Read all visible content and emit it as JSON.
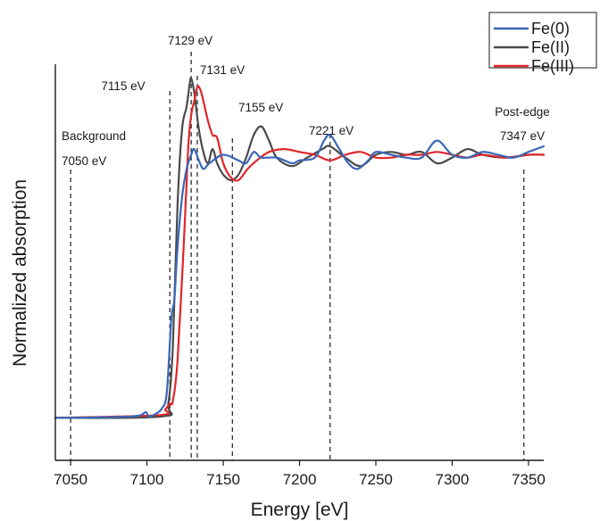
{
  "chart_data": {
    "type": "line",
    "xlabel": "Energy [eV]",
    "ylabel": "Normalized absorption",
    "xlim": [
      7040,
      7360
    ],
    "ylim": [
      -0.15,
      1.25
    ],
    "x_ticks": [
      7050,
      7100,
      7150,
      7200,
      7250,
      7300,
      7350
    ],
    "y_ticks_shown": false,
    "legend": {
      "position": "top-right",
      "entries": [
        "Fe(0)",
        "Fe(II)",
        "Fe(III)"
      ]
    },
    "annotations": [
      {
        "x": 7050,
        "lines": [
          "Background",
          "7050 eV"
        ]
      },
      {
        "x": 7115,
        "lines": [
          "7115 eV"
        ]
      },
      {
        "x": 7129,
        "lines": [
          "7129 eV"
        ]
      },
      {
        "x": 7133,
        "lines": [
          "7131 eV"
        ]
      },
      {
        "x": 7156,
        "lines": [
          "7155 eV"
        ]
      },
      {
        "x": 7220,
        "lines": [
          "7221 eV"
        ]
      },
      {
        "x": 7347,
        "lines": [
          "Post-edge",
          "7347 eV"
        ]
      }
    ],
    "series": [
      {
        "name": "Fe(0)",
        "color": "#3a67b8",
        "x": [
          7040,
          7090,
          7099,
          7101,
          7106,
          7110,
          7113,
          7116,
          7118,
          7120,
          7123,
          7126,
          7129,
          7131,
          7134,
          7137,
          7141,
          7150,
          7160,
          7165,
          7170,
          7175,
          7185,
          7195,
          7200,
          7210,
          7216,
          7220,
          7225,
          7232,
          7238,
          7245,
          7250,
          7260,
          7270,
          7280,
          7290,
          7300,
          7310,
          7320,
          7330,
          7340,
          7350,
          7360
        ],
        "y": [
          0.0,
          0.005,
          0.02,
          0.005,
          0.015,
          0.035,
          0.09,
          0.35,
          0.42,
          0.6,
          0.78,
          0.88,
          0.93,
          0.95,
          0.91,
          0.88,
          0.9,
          0.93,
          0.91,
          0.9,
          0.94,
          0.92,
          0.92,
          0.9,
          0.91,
          0.92,
          0.98,
          1.0,
          0.96,
          0.9,
          0.88,
          0.91,
          0.94,
          0.93,
          0.92,
          0.92,
          0.98,
          0.93,
          0.92,
          0.94,
          0.93,
          0.92,
          0.94,
          0.96
        ]
      },
      {
        "name": "Fe(II)",
        "color": "#4a4a4a",
        "x": [
          7040,
          7110,
          7114,
          7117,
          7120,
          7123,
          7126,
          7128,
          7129,
          7131,
          7134,
          7137,
          7140,
          7143,
          7146,
          7150,
          7155,
          7160,
          7165,
          7170,
          7175,
          7180,
          7185,
          7195,
          7205,
          7215,
          7220,
          7230,
          7240,
          7250,
          7260,
          7270,
          7280,
          7290,
          7300,
          7310,
          7320,
          7335,
          7350,
          7360
        ],
        "y": [
          0.0,
          0.005,
          0.05,
          0.25,
          0.75,
          1.02,
          1.1,
          1.18,
          1.2,
          1.15,
          1.02,
          0.94,
          0.9,
          0.95,
          0.9,
          0.86,
          0.84,
          0.86,
          0.92,
          1.0,
          1.03,
          0.98,
          0.92,
          0.89,
          0.92,
          0.95,
          0.96,
          0.92,
          0.89,
          0.93,
          0.94,
          0.93,
          0.94,
          0.9,
          0.92,
          0.95,
          0.93,
          0.92,
          0.93,
          0.93
        ]
      },
      {
        "name": "Fe(III)",
        "color": "#e0262a",
        "x": [
          7040,
          7108,
          7112,
          7115,
          7117,
          7120,
          7124,
          7127,
          7129,
          7131,
          7133,
          7135,
          7137,
          7140,
          7143,
          7146,
          7150,
          7155,
          7160,
          7166,
          7172,
          7180,
          7190,
          7200,
          7210,
          7220,
          7230,
          7240,
          7250,
          7260,
          7270,
          7280,
          7290,
          7300,
          7310,
          7320,
          7335,
          7350,
          7360
        ],
        "y": [
          0.0,
          0.01,
          0.03,
          0.05,
          0.06,
          0.2,
          0.6,
          0.95,
          1.07,
          1.12,
          1.17,
          1.16,
          1.12,
          1.05,
          1.0,
          0.99,
          0.9,
          0.85,
          0.84,
          0.88,
          0.91,
          0.94,
          0.95,
          0.94,
          0.93,
          0.91,
          0.93,
          0.94,
          0.92,
          0.92,
          0.93,
          0.93,
          0.94,
          0.93,
          0.92,
          0.93,
          0.92,
          0.93,
          0.93
        ]
      }
    ]
  }
}
